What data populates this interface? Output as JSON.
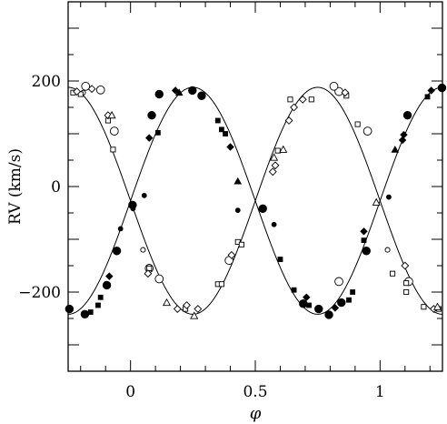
{
  "chart_data": {
    "type": "scatter",
    "title": "",
    "xlabel": "φ",
    "ylabel": "RV (km/s)",
    "xlim": [
      -0.25,
      1.25
    ],
    "ylim": [
      -350,
      350
    ],
    "xticks": [
      0,
      0.5,
      1
    ],
    "xtick_labels": [
      "0",
      "0.5",
      "1"
    ],
    "yticks": [
      -200,
      0,
      200
    ],
    "ytick_labels": [
      "−200",
      "0",
      "200"
    ],
    "grid": false,
    "legend": "none",
    "model_curves": {
      "primary": {
        "gamma": -27,
        "K": 215,
        "phase_of_max": 0.25
      },
      "secondary": {
        "gamma": -27,
        "K": 215,
        "phase_of_max": 0.75
      }
    },
    "series": [
      {
        "component": "primary",
        "markers": [
          {
            "shape": "filled-circle",
            "size": "large",
            "points": [
              [
                -0.245,
                -232
              ],
              [
                -0.183,
                -242
              ],
              [
                -0.095,
                -187
              ],
              [
                -0.055,
                -122
              ],
              [
                0.008,
                -35
              ],
              [
                0.085,
                135
              ],
              [
                0.115,
                175
              ],
              [
                0.248,
                182
              ],
              [
                0.285,
                172
              ],
              [
                0.53,
                -42
              ],
              [
                0.692,
                -222
              ],
              [
                0.754,
                -232
              ],
              [
                0.795,
                -243
              ],
              [
                0.845,
                -220
              ],
              [
                0.945,
                -122
              ],
              [
                1.11,
                135
              ],
              [
                1.248,
                187
              ]
            ]
          },
          {
            "shape": "filled-circle",
            "size": "small",
            "points": [
              [
                0.01,
                -42
              ],
              [
                -0.04,
                -80
              ],
              [
                0.055,
                -17
              ],
              [
                0.43,
                -45
              ],
              [
                0.575,
                -72
              ],
              [
                1.035,
                -20
              ]
            ]
          },
          {
            "shape": "filled-square",
            "size": "small",
            "points": [
              [
                -0.16,
                -238
              ],
              [
                -0.13,
                -225
              ],
              [
                -0.12,
                -210
              ],
              [
                0.11,
                102
              ],
              [
                0.35,
                125
              ],
              [
                0.365,
                108
              ],
              [
                0.38,
                100
              ],
              [
                0.6,
                -138
              ],
              [
                0.655,
                -196
              ],
              [
                0.715,
                -225
              ],
              [
                0.875,
                -215
              ],
              [
                0.89,
                -200
              ],
              [
                0.935,
                -102
              ],
              [
                1.19,
                170
              ]
            ]
          },
          {
            "shape": "filled-diamond",
            "size": "small",
            "points": [
              [
                -0.085,
                -170
              ],
              [
                0.075,
                92
              ],
              [
                0.18,
                182
              ],
              [
                0.4,
                75
              ],
              [
                0.705,
                -210
              ],
              [
                0.82,
                -230
              ],
              [
                0.935,
                -85
              ],
              [
                1.09,
                88
              ],
              [
                1.095,
                98
              ],
              [
                1.205,
                182
              ]
            ]
          },
          {
            "shape": "filled-triangle",
            "size": "small",
            "points": [
              [
                0.195,
                178
              ],
              [
                0.43,
                10
              ],
              [
                1.06,
                70
              ]
            ]
          }
        ]
      },
      {
        "component": "secondary",
        "markers": [
          {
            "shape": "open-circle",
            "size": "large",
            "points": [
              [
                -0.18,
                190
              ],
              [
                -0.12,
                183
              ],
              [
                -0.065,
                105
              ],
              [
                0.075,
                -155
              ],
              [
                0.115,
                -175
              ],
              [
                0.395,
                -140
              ],
              [
                0.835,
                180
              ],
              [
                0.815,
                190
              ],
              [
                0.835,
                -180
              ],
              [
                0.95,
                105
              ],
              [
                1.115,
                -180
              ]
            ]
          },
          {
            "shape": "open-circle",
            "size": "small",
            "points": [
              [
                -0.19,
                178
              ],
              [
                0.05,
                -120
              ],
              [
                1.03,
                -120
              ]
            ]
          },
          {
            "shape": "open-square",
            "size": "small",
            "points": [
              [
                -0.23,
                178
              ],
              [
                -0.2,
                175
              ],
              [
                -0.09,
                125
              ],
              [
                -0.07,
                70
              ],
              [
                0.075,
                -155
              ],
              [
                0.22,
                -232
              ],
              [
                0.35,
                -185
              ],
              [
                0.365,
                -185
              ],
              [
                0.43,
                -105
              ],
              [
                0.445,
                -110
              ],
              [
                0.59,
                68
              ],
              [
                0.64,
                165
              ],
              [
                0.725,
                165
              ],
              [
                0.865,
                172
              ],
              [
                0.91,
                118
              ],
              [
                1.05,
                -165
              ],
              [
                1.105,
                -183
              ],
              [
                1.105,
                -200
              ],
              [
                1.175,
                -228
              ],
              [
                1.235,
                -232
              ]
            ]
          },
          {
            "shape": "open-diamond",
            "size": "small",
            "points": [
              [
                -0.215,
                180
              ],
              [
                -0.155,
                185
              ],
              [
                -0.09,
                135
              ],
              [
                0.07,
                -165
              ],
              [
                0.188,
                -232
              ],
              [
                0.225,
                -225
              ],
              [
                0.27,
                -232
              ],
              [
                0.405,
                -130
              ],
              [
                0.57,
                28
              ],
              [
                0.58,
                40
              ],
              [
                0.635,
                125
              ],
              [
                0.655,
                150
              ],
              [
                0.69,
                165
              ],
              [
                0.86,
                178
              ],
              [
                1.1,
                -150
              ],
              [
                1.215,
                -232
              ]
            ]
          },
          {
            "shape": "open-triangle",
            "size": "small",
            "points": [
              [
                -0.075,
                135
              ],
              [
                0.145,
                -220
              ],
              [
                0.255,
                -245
              ],
              [
                0.575,
                55
              ],
              [
                0.612,
                70
              ],
              [
                0.985,
                -30
              ],
              [
                1.23,
                -228
              ]
            ]
          }
        ]
      }
    ]
  }
}
